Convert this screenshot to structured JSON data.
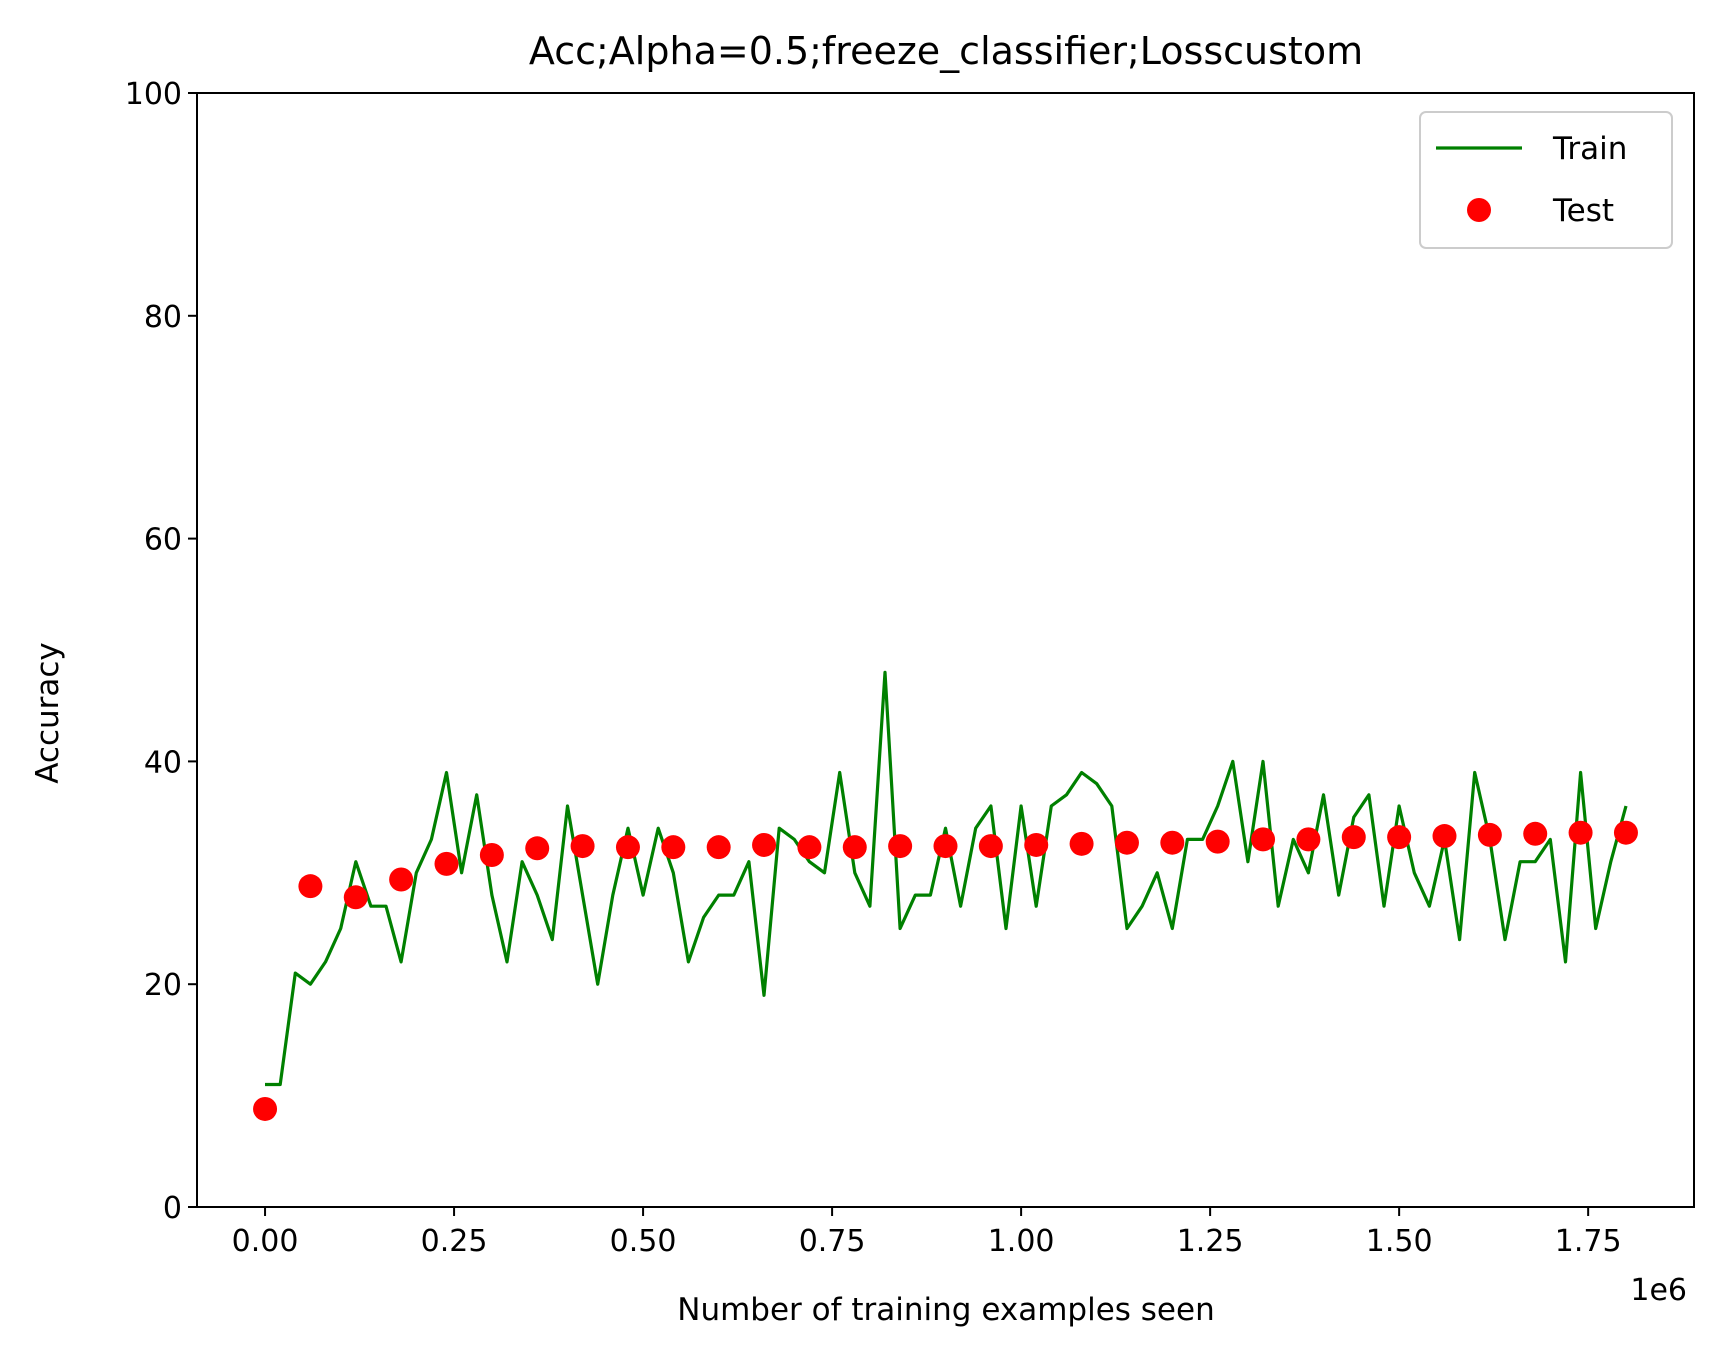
{
  "chart_data": {
    "type": "line",
    "title": "Acc;Alpha=0.5;freeze_classifier;Losscustom",
    "xlabel": "Number of training examples seen",
    "ylabel": "Accuracy",
    "x_offset_label": "1e6",
    "xlim": [
      -0.09,
      1.89
    ],
    "ylim": [
      0,
      100
    ],
    "x_ticks": [
      0,
      0.25,
      0.5,
      0.75,
      1.0,
      1.25,
      1.5,
      1.75
    ],
    "x_tick_labels": [
      "0.00",
      "0.25",
      "0.50",
      "0.75",
      "1.00",
      "1.25",
      "1.50",
      "1.75"
    ],
    "y_ticks": [
      0,
      20,
      40,
      60,
      80,
      100
    ],
    "y_tick_labels": [
      "0",
      "20",
      "40",
      "60",
      "80",
      "100"
    ],
    "grid": false,
    "legend_position": "top-right",
    "series": [
      {
        "name": "Train",
        "kind": "line",
        "color": "#008000",
        "x": [
          0.0,
          0.02,
          0.04,
          0.06,
          0.08,
          0.1,
          0.12,
          0.14,
          0.16,
          0.18,
          0.2,
          0.22,
          0.24,
          0.26,
          0.28,
          0.3,
          0.32,
          0.34,
          0.36,
          0.38,
          0.4,
          0.42,
          0.44,
          0.46,
          0.48,
          0.5,
          0.52,
          0.54,
          0.56,
          0.58,
          0.6,
          0.62,
          0.64,
          0.66,
          0.68,
          0.7,
          0.72,
          0.74,
          0.76,
          0.78,
          0.8,
          0.82,
          0.84,
          0.86,
          0.88,
          0.9,
          0.92,
          0.94,
          0.96,
          0.98,
          1.0,
          1.02,
          1.04,
          1.06,
          1.08,
          1.1,
          1.12,
          1.14,
          1.16,
          1.18,
          1.2,
          1.22,
          1.24,
          1.26,
          1.28,
          1.3,
          1.32,
          1.34,
          1.36,
          1.38,
          1.4,
          1.42,
          1.44,
          1.46,
          1.48,
          1.5,
          1.52,
          1.54,
          1.56,
          1.58,
          1.6,
          1.62,
          1.64,
          1.66,
          1.68,
          1.7,
          1.72,
          1.74,
          1.76,
          1.78,
          1.8
        ],
        "y": [
          11,
          11,
          21,
          20,
          22,
          25,
          31,
          27,
          27,
          22,
          30,
          33,
          39,
          30,
          37,
          28,
          22,
          31,
          28,
          24,
          36,
          28,
          20,
          28,
          34,
          28,
          34,
          30,
          22,
          26,
          28,
          28,
          31,
          19,
          34,
          33,
          31,
          30,
          39,
          30,
          27,
          48,
          25,
          28,
          28,
          34,
          27,
          34,
          36,
          25,
          36,
          27,
          36,
          37,
          39,
          38,
          36,
          25,
          27,
          30,
          25,
          33,
          33,
          36,
          40,
          31,
          40,
          27,
          33,
          30,
          37,
          28,
          35,
          37,
          27,
          36,
          30,
          27,
          33,
          24,
          39,
          33,
          24,
          31,
          31,
          33,
          22,
          39,
          25,
          31,
          36
        ]
      },
      {
        "name": "Test",
        "kind": "scatter",
        "color": "#ff0000",
        "x": [
          0.0,
          0.06,
          0.12,
          0.18,
          0.24,
          0.3,
          0.36,
          0.42,
          0.48,
          0.54,
          0.6,
          0.66,
          0.72,
          0.78,
          0.84,
          0.9,
          0.96,
          1.02,
          1.08,
          1.14,
          1.2,
          1.26,
          1.32,
          1.38,
          1.44,
          1.5,
          1.56,
          1.62,
          1.68,
          1.74,
          1.8
        ],
        "y": [
          8.8,
          28.8,
          27.8,
          29.4,
          30.8,
          31.6,
          32.2,
          32.4,
          32.3,
          32.3,
          32.3,
          32.5,
          32.3,
          32.3,
          32.4,
          32.4,
          32.4,
          32.5,
          32.6,
          32.7,
          32.7,
          32.8,
          33.0,
          33.0,
          33.2,
          33.2,
          33.3,
          33.4,
          33.5,
          33.6,
          33.6
        ]
      }
    ]
  }
}
